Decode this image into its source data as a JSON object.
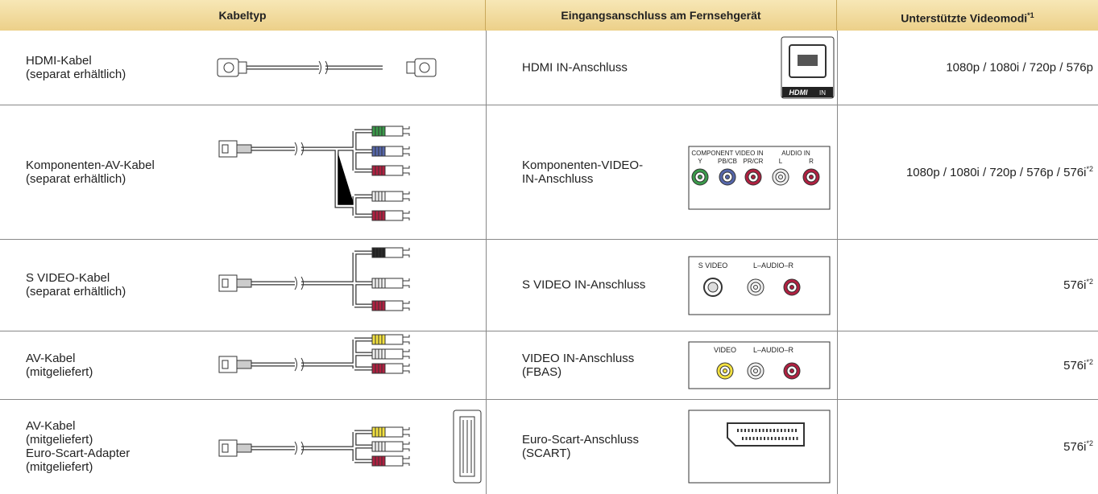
{
  "header": {
    "cable_type": "Kabeltyp",
    "input": "Eingangsanschluss am Fernsehgerät",
    "modes": "Unterstützte Videomodi",
    "modes_note": "*1"
  },
  "rows": [
    {
      "cable": [
        "HDMI-Kabel",
        "(separat erhältlich)"
      ],
      "input": [
        "HDMI IN-Anschluss"
      ],
      "port_labels": [
        "HDMI",
        "IN"
      ],
      "modes": "1080p / 1080i / 720p / 576p"
    },
    {
      "cable": [
        "Komponenten-AV-Kabel",
        "(separat erhältlich)"
      ],
      "input": [
        "Komponenten-VIDEO-",
        "IN-Anschluss"
      ],
      "port_labels": [
        "COMPONENT VIDEO IN",
        "AUDIO IN",
        "Y",
        "PB/CB",
        "PR/CR",
        "L",
        "R"
      ],
      "modes": "1080p / 1080i / 720p / 576p / 576i",
      "modes_note": "*2"
    },
    {
      "cable": [
        "S VIDEO-Kabel",
        "(separat erhältlich)"
      ],
      "input": [
        "S VIDEO IN-Anschluss"
      ],
      "port_labels": [
        "S VIDEO",
        "L–AUDIO–R"
      ],
      "modes": "576i",
      "modes_note": "*2"
    },
    {
      "cable": [
        "AV-Kabel",
        "(mitgeliefert)"
      ],
      "input": [
        "VIDEO IN-Anschluss",
        "(FBAS)"
      ],
      "port_labels": [
        "VIDEO",
        "L–AUDIO–R"
      ],
      "modes": "576i",
      "modes_note": "*2"
    },
    {
      "cable": [
        "AV-Kabel",
        "(mitgeliefert)",
        "Euro-Scart-Adapter",
        "(mitgeliefert)"
      ],
      "input": [
        "Euro-Scart-Anschluss",
        "(SCART)"
      ],
      "modes": "576i",
      "modes_note": "*2"
    }
  ]
}
